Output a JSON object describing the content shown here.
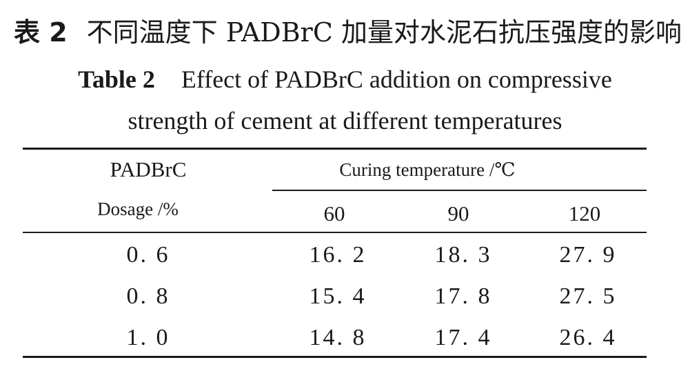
{
  "caption": {
    "cn_label": "表 2",
    "cn_text": "不同温度下 PADBrC 加量对水泥石抗压强度的影响",
    "en_label": "Table 2",
    "en_text_line1": "Effect of PADBrC addition on compressive",
    "en_text_line2": "strength of cement at different temperatures"
  },
  "table": {
    "header": {
      "row_label_line1": "PADBrC",
      "row_label_line2": "Dosage /%",
      "group_label": "Curing temperature /℃",
      "columns": [
        "60",
        "90",
        "120"
      ]
    },
    "rows": [
      {
        "dosage": "0. 6",
        "values": [
          "16. 2",
          "18. 3",
          "27. 9"
        ]
      },
      {
        "dosage": "0. 8",
        "values": [
          "15. 4",
          "17. 8",
          "27. 5"
        ]
      },
      {
        "dosage": "1. 0",
        "values": [
          "14. 8",
          "17. 4",
          "26. 4"
        ]
      }
    ]
  }
}
